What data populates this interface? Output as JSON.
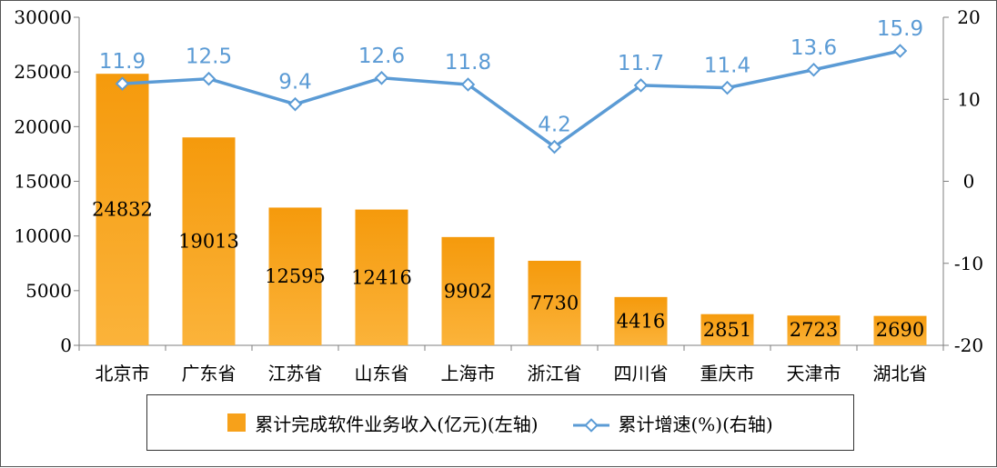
{
  "chart_data": {
    "type": "bar",
    "categories": [
      "北京市",
      "广东省",
      "江苏省",
      "山东省",
      "上海市",
      "浙江省",
      "四川省",
      "重庆市",
      "天津市",
      "湖北省"
    ],
    "series": [
      {
        "name": "累计完成软件业务收入(亿元)(左轴)",
        "type": "bar",
        "axis": "left",
        "values": [
          24832,
          19013,
          12595,
          12416,
          9902,
          7730,
          4416,
          2851,
          2723,
          2690
        ],
        "labels": [
          "24832",
          "19013",
          "12595",
          "12416",
          "9902",
          "7730",
          "4416",
          "2851",
          "2723",
          "2690"
        ]
      },
      {
        "name": "累计增速(%)(右轴)",
        "type": "line",
        "axis": "right",
        "values": [
          11.9,
          12.5,
          9.4,
          12.6,
          11.8,
          4.2,
          11.7,
          11.4,
          13.6,
          15.9
        ],
        "labels": [
          "11.9",
          "12.5",
          "9.4",
          "12.6",
          "11.8",
          "4.2",
          "11.7",
          "11.4",
          "13.6",
          "15.9"
        ]
      }
    ],
    "y_left": {
      "min": 0,
      "max": 30000,
      "ticks": [
        "0",
        "5000",
        "10000",
        "15000",
        "20000",
        "25000",
        "30000"
      ]
    },
    "y_right": {
      "min": -20,
      "max": 20,
      "ticks": [
        "-20",
        "-10",
        "0",
        "10",
        "20"
      ]
    },
    "grid": false,
    "legend_position": "bottom",
    "colors": {
      "bar": "#f7a11a",
      "line": "#5b9bd5",
      "line_label": "#5b9bd5"
    }
  }
}
